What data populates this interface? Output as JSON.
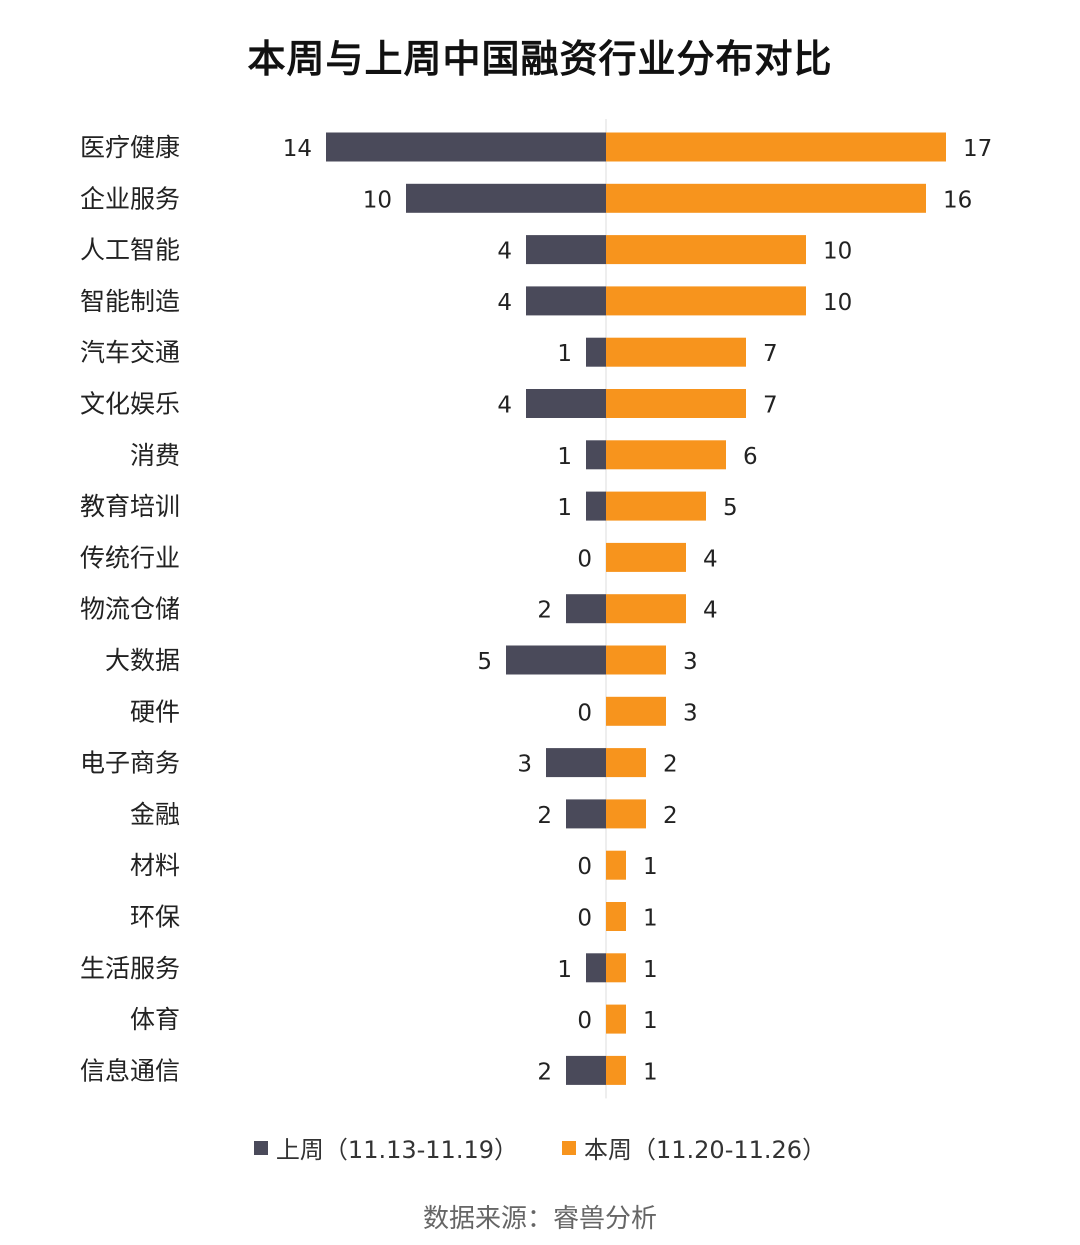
{
  "chart_data": {
    "type": "bar",
    "title": "本周与上周中国融资行业分布对比",
    "categories": [
      "医疗健康",
      "企业服务",
      "人工智能",
      "智能制造",
      "汽车交通",
      "文化娱乐",
      "消费",
      "教育培训",
      "传统行业",
      "物流仓储",
      "大数据",
      "硬件",
      "电子商务",
      "金融",
      "材料",
      "环保",
      "生活服务",
      "体育",
      "信息通信"
    ],
    "series": [
      {
        "name": "上周（11.13-11.19）",
        "color": "#4a4a5a",
        "values": [
          14,
          10,
          4,
          4,
          1,
          4,
          1,
          1,
          0,
          2,
          5,
          0,
          3,
          2,
          0,
          0,
          1,
          0,
          2
        ]
      },
      {
        "name": "本周（11.20-11.26）",
        "color": "#f7941d",
        "values": [
          17,
          16,
          10,
          10,
          7,
          7,
          6,
          5,
          4,
          4,
          3,
          3,
          2,
          2,
          1,
          1,
          1,
          1,
          1
        ]
      }
    ],
    "legend": "bottom",
    "grid": false
  },
  "source": "数据来源：睿兽分析"
}
